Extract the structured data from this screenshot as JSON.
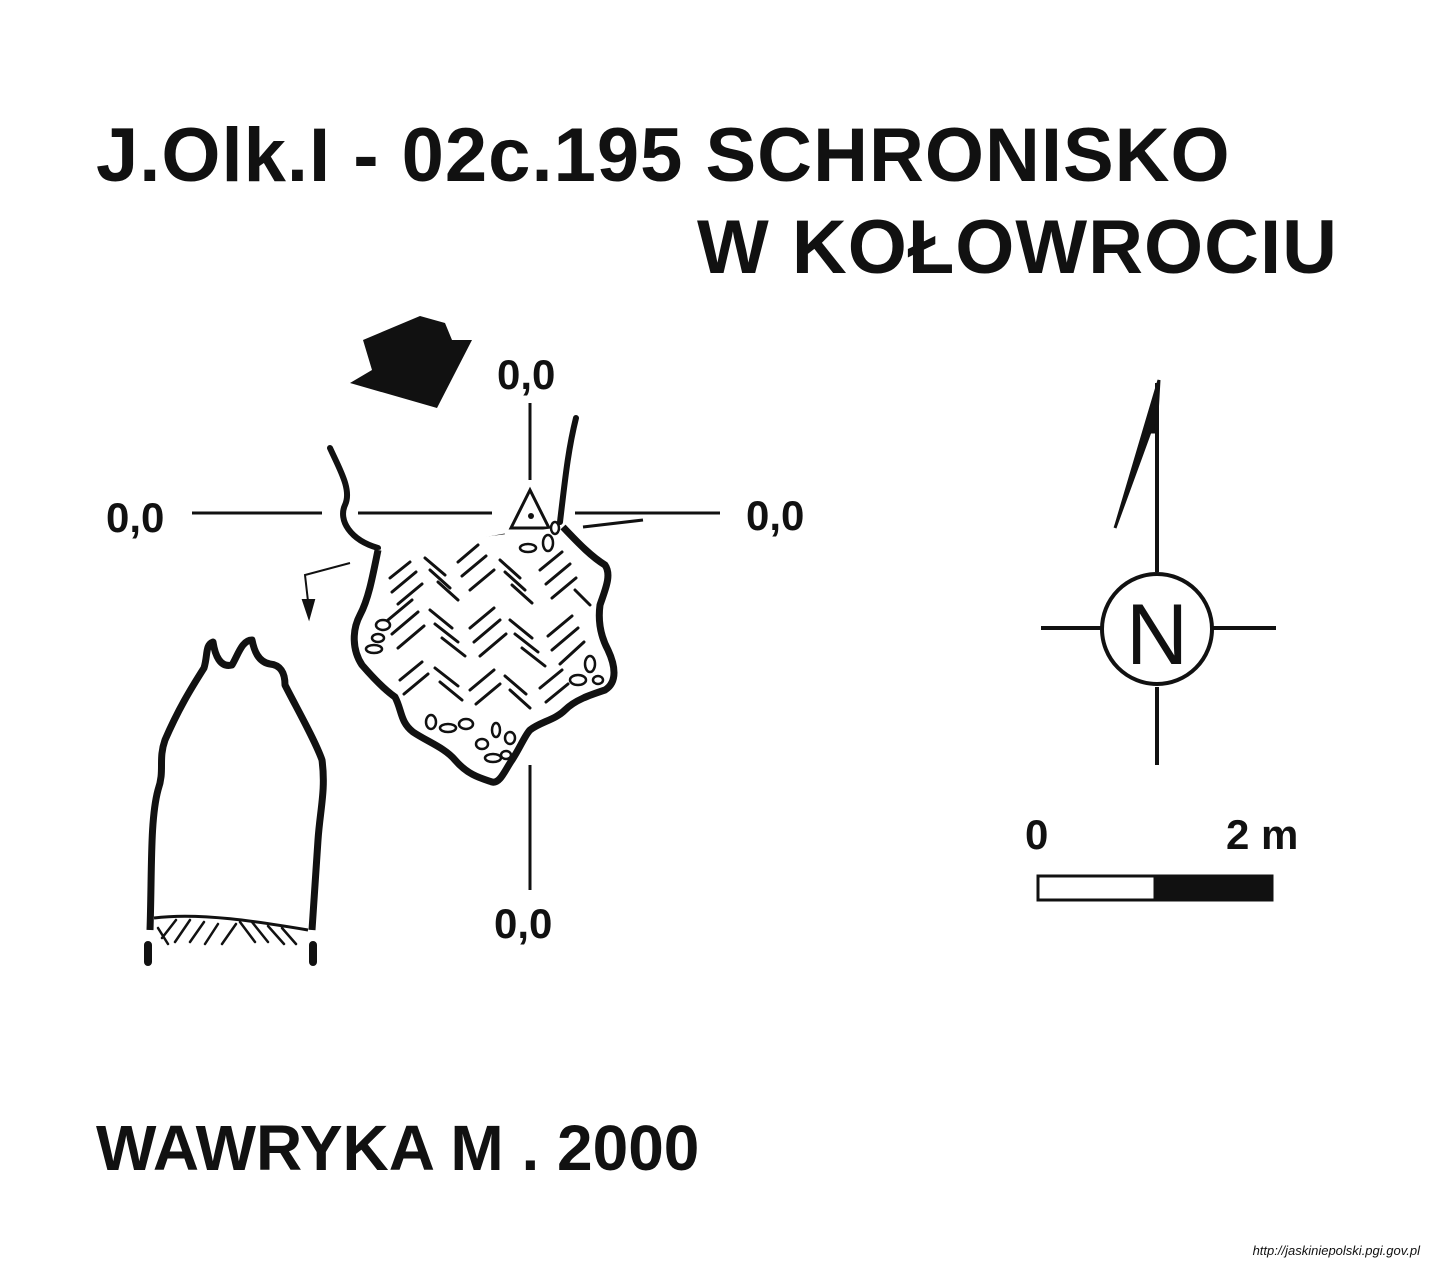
{
  "title": {
    "line1": "J.Olk.I - 02c.195  SCHRONISKO",
    "line2": "W KOŁOWROCIU"
  },
  "survey_axes": {
    "top": "0,0",
    "left": "0,0",
    "right": "0,0",
    "bottom": "0,0"
  },
  "north_arrow": {
    "letter": "N",
    "icon": "north-arrow-compass-icon"
  },
  "scale_bar": {
    "start_label": "0",
    "end_label": "2 m"
  },
  "author": "WAWRYKA M . 2000",
  "source_url": "http://jaskiniepolski.pgi.gov.pl",
  "colors": {
    "ink": "#111111",
    "paper": "#ffffff"
  }
}
